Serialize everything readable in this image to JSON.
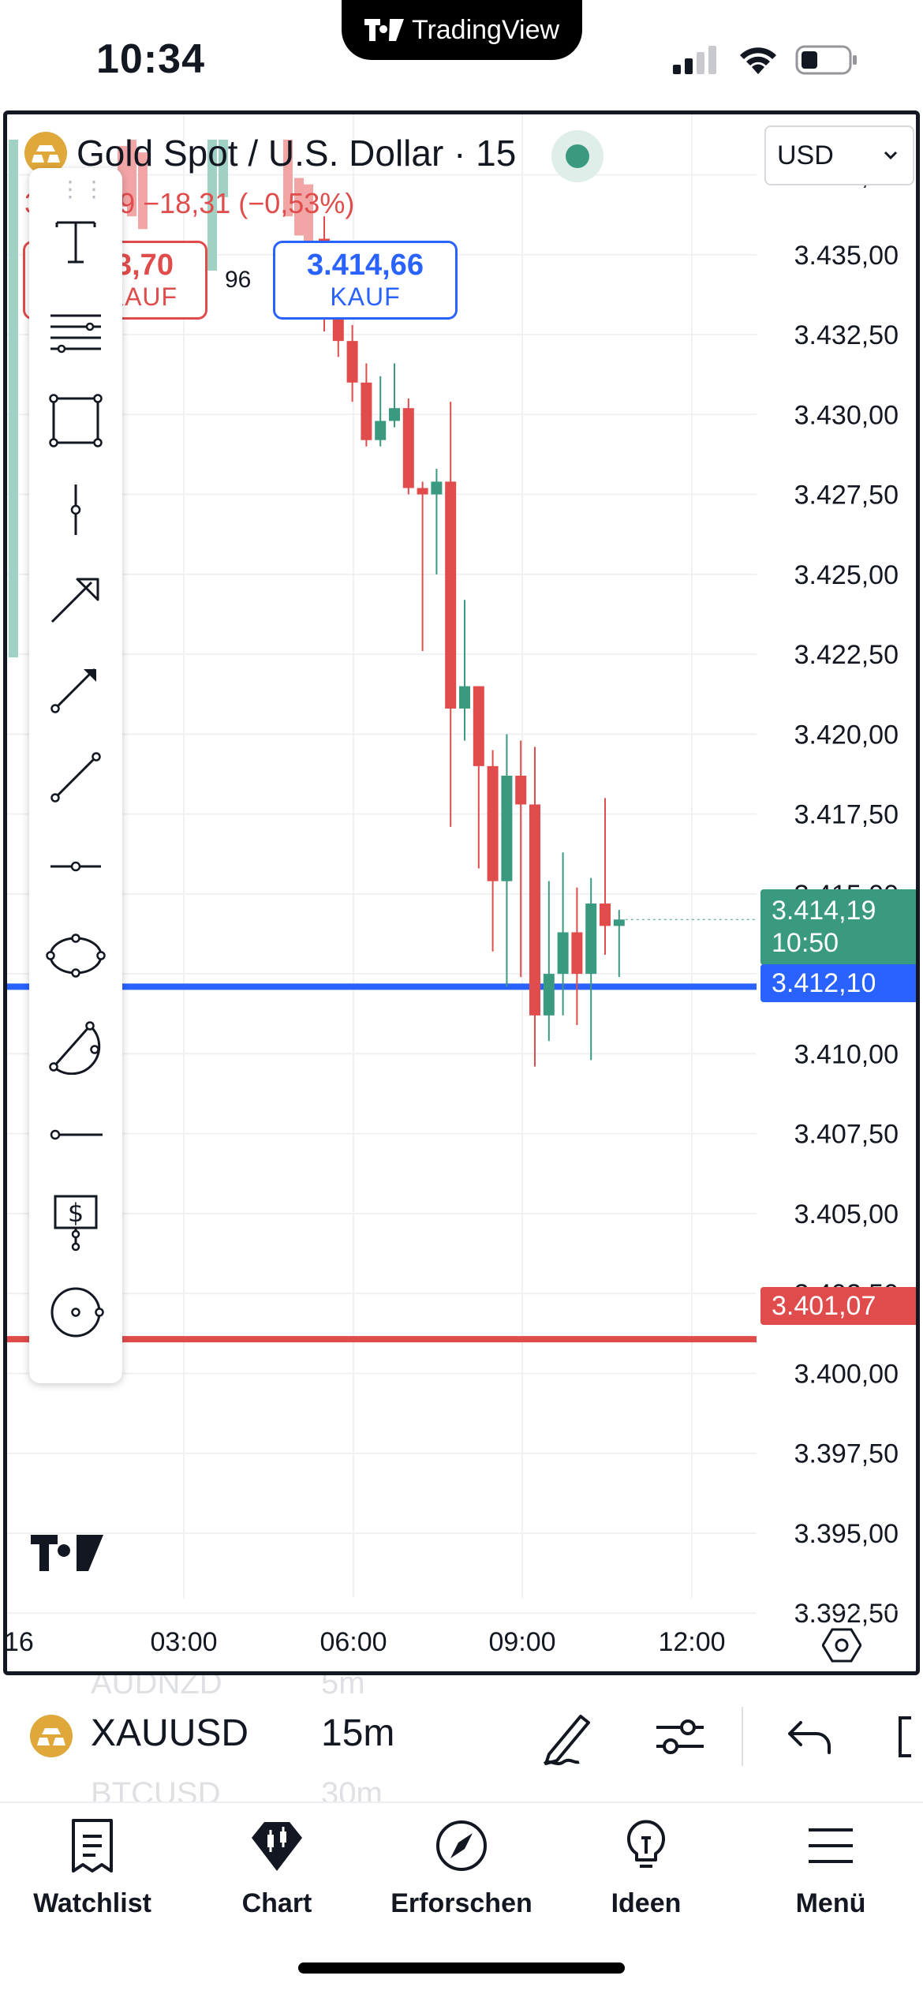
{
  "status_bar": {
    "time": "10:34",
    "center_app": "TradingView"
  },
  "chart": {
    "symbol_title": "Gold Spot / U.S. Dollar · 15",
    "change_text": "3.414,19 −18,31 (−0,53%)",
    "currency": "USD",
    "sell": {
      "price": "3.413,70",
      "label": "VERKAUF"
    },
    "buy": {
      "price": "3.414,66",
      "label": "KAUF"
    },
    "spread": "96",
    "price_labels": [
      "3.437,50",
      "3.435,00",
      "3.432,50",
      "3.430,00",
      "3.427,50",
      "3.425,00",
      "3.422,50",
      "3.420,00",
      "3.417,50",
      "3.415,00",
      "3.412,50",
      "3.410,00",
      "3.407,50",
      "3.405,00",
      "3.402,50",
      "3.400,00",
      "3.397,50",
      "3.395,00",
      "3.392,50"
    ],
    "time_labels": [
      "16",
      "03:00",
      "06:00",
      "09:00",
      "12:00"
    ],
    "last_price": "3.414,19",
    "countdown": "10:50",
    "blue_line_price": "3.412,10",
    "red_line_price": "3.401,07",
    "colors": {
      "up": "#3a9a80",
      "down": "#e04b4b",
      "blue_line": "#2962ff",
      "red_line": "#e04b4b"
    }
  },
  "chart_data": {
    "type": "candlestick",
    "ylim": [
      3391,
      3438.5
    ],
    "candles": [
      {
        "t": "05:45",
        "o": 3435.5,
        "h": 3436.2,
        "c": 3433.0,
        "l": 3432.6
      },
      {
        "t": "06:00",
        "o": 3433.0,
        "h": 3434.2,
        "c": 3432.3,
        "l": 3431.8
      },
      {
        "t": "06:15",
        "o": 3432.3,
        "h": 3432.8,
        "c": 3431.0,
        "l": 3430.4
      },
      {
        "t": "06:30",
        "o": 3431.0,
        "h": 3431.6,
        "c": 3429.2,
        "l": 3429.0
      },
      {
        "t": "06:45",
        "o": 3429.2,
        "h": 3431.2,
        "c": 3429.8,
        "l": 3429.0
      },
      {
        "t": "07:00",
        "o": 3429.8,
        "h": 3431.6,
        "c": 3430.2,
        "l": 3429.6
      },
      {
        "t": "07:15",
        "o": 3430.2,
        "h": 3430.5,
        "c": 3427.7,
        "l": 3427.5
      },
      {
        "t": "07:30",
        "o": 3427.7,
        "h": 3427.9,
        "c": 3427.5,
        "l": 3422.6
      },
      {
        "t": "07:45",
        "o": 3427.5,
        "h": 3428.3,
        "c": 3427.9,
        "l": 3425.0
      },
      {
        "t": "08:00",
        "o": 3427.9,
        "h": 3430.4,
        "c": 3420.8,
        "l": 3417.1
      },
      {
        "t": "08:15",
        "o": 3420.8,
        "h": 3424.2,
        "c": 3421.5,
        "l": 3419.8
      },
      {
        "t": "08:30",
        "o": 3421.5,
        "h": 3421.5,
        "c": 3419.0,
        "l": 3415.8
      },
      {
        "t": "08:45",
        "o": 3419.0,
        "h": 3419.5,
        "c": 3415.4,
        "l": 3413.2
      },
      {
        "t": "09:00",
        "o": 3415.4,
        "h": 3420.0,
        "c": 3418.7,
        "l": 3412.1
      },
      {
        "t": "09:15",
        "o": 3418.7,
        "h": 3419.8,
        "c": 3417.8,
        "l": 3412.4
      },
      {
        "t": "09:30",
        "o": 3417.8,
        "h": 3419.6,
        "c": 3411.2,
        "l": 3409.6
      },
      {
        "t": "09:45",
        "o": 3411.2,
        "h": 3415.4,
        "c": 3412.5,
        "l": 3410.4
      },
      {
        "t": "10:00",
        "o": 3412.5,
        "h": 3416.3,
        "c": 3413.8,
        "l": 3411.2
      },
      {
        "t": "10:15",
        "o": 3413.8,
        "h": 3415.2,
        "c": 3412.5,
        "l": 3410.9
      },
      {
        "t": "10:30",
        "o": 3412.5,
        "h": 3415.5,
        "c": 3414.7,
        "l": 3409.8
      },
      {
        "t": "10:45",
        "o": 3414.7,
        "h": 3418.0,
        "c": 3414.0,
        "l": 3413.1
      },
      {
        "t": "11:00",
        "o": 3414.0,
        "h": 3414.5,
        "c": 3414.2,
        "l": 3412.4
      }
    ],
    "hlines": [
      {
        "price": 3412.1,
        "color": "#2962ff"
      },
      {
        "price": 3401.07,
        "color": "#e04b4b"
      }
    ]
  },
  "symbol_bar": {
    "symbol": "XAUUSD",
    "interval": "15m",
    "ghost_above_symbol": "AUDNZD",
    "ghost_above_interval": "5m",
    "ghost_below_symbol": "BTCUSD",
    "ghost_below_interval": "30m"
  },
  "bottom_nav": [
    {
      "label": "Watchlist",
      "icon": "watchlist-icon"
    },
    {
      "label": "Chart",
      "icon": "chart-icon"
    },
    {
      "label": "Erforschen",
      "icon": "compass-icon"
    },
    {
      "label": "Ideen",
      "icon": "lightbulb-icon"
    },
    {
      "label": "Menü",
      "icon": "menu-icon"
    }
  ]
}
